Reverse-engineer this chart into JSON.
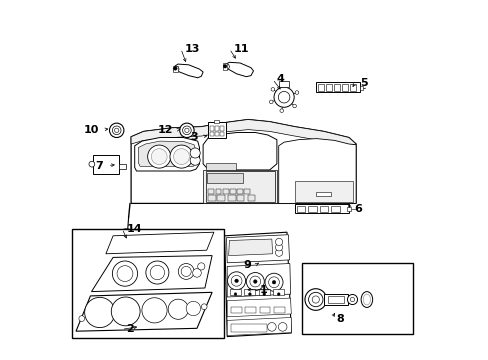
{
  "bg_color": "#ffffff",
  "line_color": "#000000",
  "fig_width": 4.89,
  "fig_height": 3.6,
  "dpi": 100,
  "label_fontsize": 8,
  "lw": 0.7,
  "labels": {
    "1": [
      0.565,
      0.195,
      0.5,
      0.195,
      "right"
    ],
    "2": [
      0.17,
      0.085,
      0.21,
      0.093,
      "left"
    ],
    "3": [
      0.37,
      0.62,
      0.405,
      0.625,
      "right"
    ],
    "4": [
      0.59,
      0.78,
      0.605,
      0.745,
      "left"
    ],
    "5": [
      0.82,
      0.77,
      0.8,
      0.758,
      "left"
    ],
    "6": [
      0.805,
      0.42,
      0.79,
      0.435,
      "left"
    ],
    "7": [
      0.108,
      0.54,
      0.148,
      0.543,
      "right"
    ],
    "8": [
      0.755,
      0.115,
      0.755,
      0.138,
      "left"
    ],
    "9": [
      0.52,
      0.265,
      0.54,
      0.27,
      "right"
    ],
    "10": [
      0.096,
      0.64,
      0.13,
      0.643,
      "right"
    ],
    "11": [
      0.47,
      0.865,
      0.48,
      0.83,
      "left"
    ],
    "12": [
      0.302,
      0.64,
      0.33,
      0.643,
      "right"
    ],
    "13": [
      0.335,
      0.865,
      0.34,
      0.82,
      "left"
    ],
    "14": [
      0.172,
      0.365,
      0.176,
      0.33,
      "left"
    ]
  }
}
